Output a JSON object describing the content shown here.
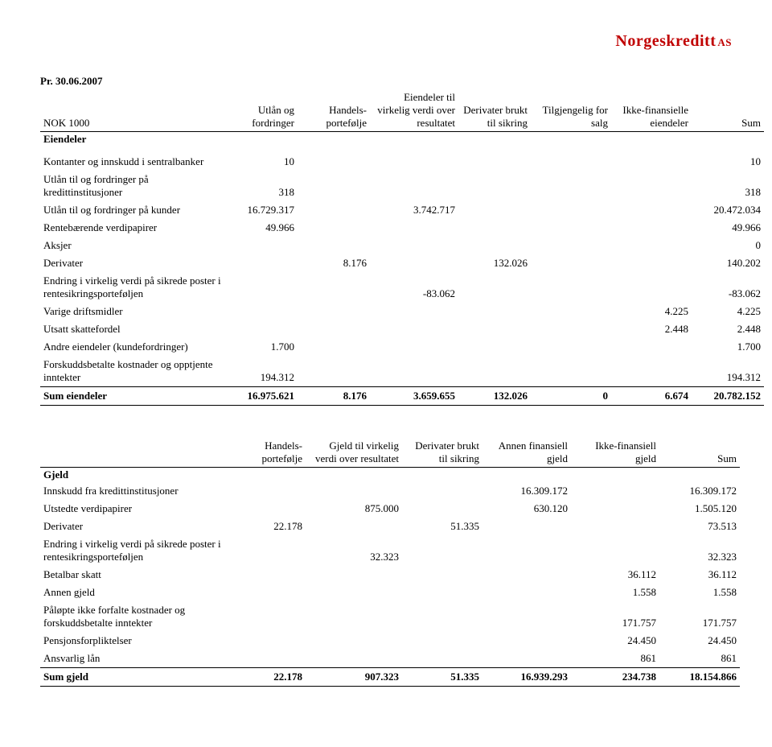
{
  "brand": {
    "name": "Norgeskreditt",
    "suffix": "AS"
  },
  "date_line": "Pr. 30.06.2007",
  "assets": {
    "unit_label": "NOK 1000",
    "section_label": "Eiendeler",
    "headers": [
      "Utlån og fordringer",
      "Handels-portefølje",
      "Eiendeler til virkelig verdi over resultatet",
      "Derivater brukt til sikring",
      "Tilgjengelig for salg",
      "Ikke-finansielle eiendeler",
      "Sum"
    ],
    "rows": [
      {
        "label": "Kontanter og innskudd i sentralbanker",
        "c": [
          "10",
          "",
          "",
          "",
          "",
          "",
          "10"
        ]
      },
      {
        "label": "Utlån til og fordringer på kredittinstitusjoner",
        "c": [
          "318",
          "",
          "",
          "",
          "",
          "",
          "318"
        ]
      },
      {
        "label": "Utlån til og fordringer på kunder",
        "c": [
          "16.729.317",
          "",
          "3.742.717",
          "",
          "",
          "",
          "20.472.034"
        ]
      },
      {
        "label": "Rentebærende verdipapirer",
        "c": [
          "49.966",
          "",
          "",
          "",
          "",
          "",
          "49.966"
        ]
      },
      {
        "label": "Aksjer",
        "c": [
          "",
          "",
          "",
          "",
          "",
          "",
          "0"
        ]
      },
      {
        "label": "Derivater",
        "c": [
          "",
          "8.176",
          "",
          "132.026",
          "",
          "",
          "140.202"
        ]
      },
      {
        "label": "Endring i virkelig verdi på sikrede poster i rentesikringsporteføljen",
        "c": [
          "",
          "",
          "-83.062",
          "",
          "",
          "",
          "-83.062"
        ]
      },
      {
        "label": "Varige driftsmidler",
        "c": [
          "",
          "",
          "",
          "",
          "",
          "4.225",
          "4.225"
        ]
      },
      {
        "label": "Utsatt skattefordel",
        "c": [
          "",
          "",
          "",
          "",
          "",
          "2.448",
          "2.448"
        ]
      },
      {
        "label": "Andre eiendeler (kundefordringer)",
        "c": [
          "1.700",
          "",
          "",
          "",
          "",
          "",
          "1.700"
        ]
      },
      {
        "label": "Forskuddsbetalte kostnader og opptjente inntekter",
        "c": [
          "194.312",
          "",
          "",
          "",
          "",
          "",
          "194.312"
        ]
      }
    ],
    "sum": {
      "label": "Sum eiendeler",
      "c": [
        "16.975.621",
        "8.176",
        "3.659.655",
        "132.026",
        "0",
        "6.674",
        "20.782.152"
      ]
    }
  },
  "liabilities": {
    "section_label": "Gjeld",
    "headers": [
      "Handels-portefølje",
      "Gjeld til virkelig verdi over resultatet",
      "Derivater brukt til sikring",
      "Annen finansiell gjeld",
      "Ikke-finansiell gjeld",
      "Sum"
    ],
    "rows": [
      {
        "label": "Innskudd fra kredittinstitusjoner",
        "c": [
          "",
          "",
          "",
          "16.309.172",
          "",
          "16.309.172"
        ]
      },
      {
        "label": "Utstedte verdipapirer",
        "c": [
          "",
          "875.000",
          "",
          "630.120",
          "",
          "1.505.120"
        ]
      },
      {
        "label": "Derivater",
        "c": [
          "22.178",
          "",
          "51.335",
          "",
          "",
          "73.513"
        ]
      },
      {
        "label": "Endring i virkelig verdi på sikrede poster i rentesikringsporteføljen",
        "c": [
          "",
          "32.323",
          "",
          "",
          "",
          "32.323"
        ]
      },
      {
        "label": "Betalbar skatt",
        "c": [
          "",
          "",
          "",
          "",
          "36.112",
          "36.112"
        ]
      },
      {
        "label": "Annen gjeld",
        "c": [
          "",
          "",
          "",
          "",
          "1.558",
          "1.558"
        ]
      },
      {
        "label": "Påløpte ikke forfalte kostnader og forskuddsbetalte inntekter",
        "c": [
          "",
          "",
          "",
          "",
          "171.757",
          "171.757"
        ]
      },
      {
        "label": "Pensjonsforpliktelser",
        "c": [
          "",
          "",
          "",
          "",
          "24.450",
          "24.450"
        ]
      },
      {
        "label": "Ansvarlig lån",
        "c": [
          "",
          "",
          "",
          "",
          "861",
          "861"
        ]
      }
    ],
    "sum": {
      "label": "Sum gjeld",
      "c": [
        "22.178",
        "907.323",
        "51.335",
        "16.939.293",
        "234.738",
        "18.154.866"
      ]
    }
  }
}
